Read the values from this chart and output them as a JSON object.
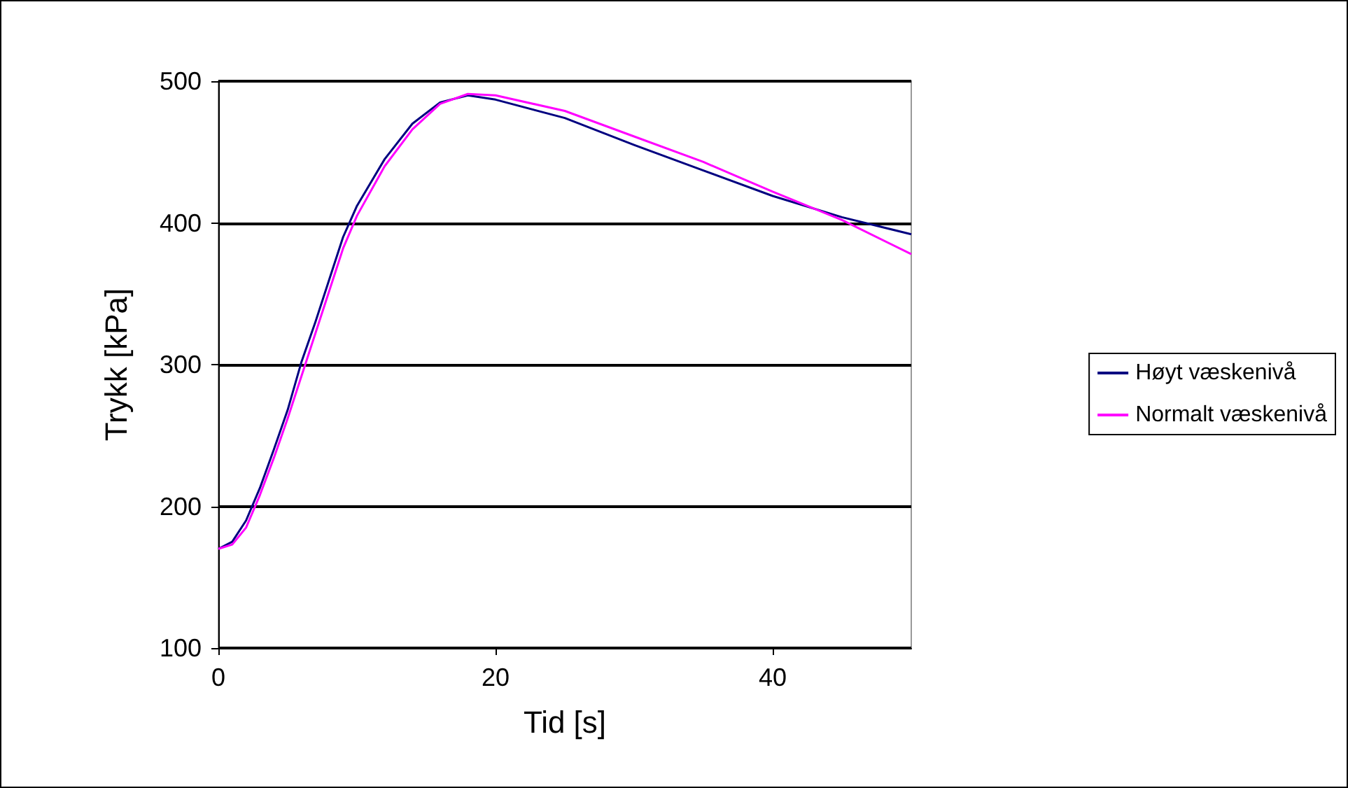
{
  "chart_data": {
    "type": "line",
    "xlabel": "Tid [s]",
    "ylabel": "Trykk [kPa]",
    "xlim": [
      0,
      50
    ],
    "xticks": [
      0,
      20,
      40
    ],
    "ylim": [
      100,
      500
    ],
    "yticks": [
      100,
      200,
      300,
      400,
      500
    ],
    "grid": "y",
    "legend": "right",
    "marker": "none",
    "line_style": "solid",
    "series": [
      {
        "name": "Høyt væskenivå",
        "color": "#000080",
        "x": [
          0,
          1,
          2,
          3,
          4,
          5,
          6,
          7,
          8,
          9,
          10,
          12,
          14,
          16,
          18,
          20,
          25,
          30,
          35,
          40,
          45,
          50
        ],
        "values": [
          170,
          175,
          190,
          213,
          240,
          268,
          302,
          330,
          360,
          390,
          412,
          445,
          470,
          485,
          490,
          487,
          474,
          455,
          437,
          419,
          404,
          392
        ]
      },
      {
        "name": "Normalt væskenivå",
        "color": "#ff00ff",
        "x": [
          0,
          1,
          2,
          3,
          4,
          5,
          6,
          7,
          8,
          9,
          10,
          12,
          14,
          16,
          18,
          20,
          25,
          30,
          35,
          40,
          45,
          50
        ],
        "values": [
          170,
          173,
          185,
          208,
          234,
          262,
          292,
          322,
          352,
          382,
          405,
          440,
          466,
          484,
          491,
          490,
          479,
          461,
          443,
          422,
          402,
          378
        ]
      }
    ]
  }
}
